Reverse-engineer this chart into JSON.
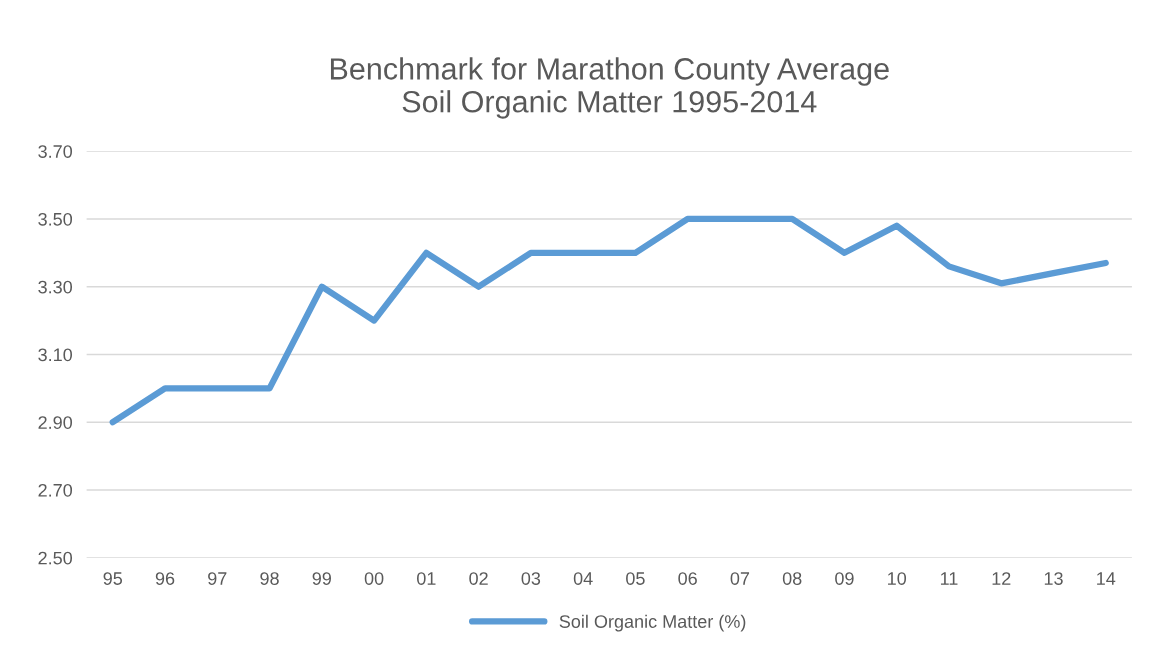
{
  "chart_data": {
    "type": "line",
    "title": "Benchmark for Marathon County Average\nSoil Organic Matter 1995-2014",
    "categories": [
      "95",
      "96",
      "97",
      "98",
      "99",
      "00",
      "01",
      "02",
      "03",
      "04",
      "05",
      "06",
      "07",
      "08",
      "09",
      "10",
      "11",
      "12",
      "13",
      "14"
    ],
    "series": [
      {
        "name": "Soil Organic Matter (%)",
        "color": "#5b9bd5",
        "values": [
          2.9,
          3.0,
          3.0,
          3.0,
          3.3,
          3.2,
          3.4,
          3.3,
          3.4,
          3.4,
          3.4,
          3.5,
          3.5,
          3.5,
          3.4,
          3.48,
          3.36,
          3.31,
          3.34,
          3.37
        ]
      }
    ],
    "ylim": [
      2.5,
      3.7
    ],
    "yticks": [
      {
        "value": 2.5,
        "label": "2.50"
      },
      {
        "value": 2.7,
        "label": "2.70"
      },
      {
        "value": 2.9,
        "label": "2.90"
      },
      {
        "value": 3.1,
        "label": "3.10"
      },
      {
        "value": 3.3,
        "label": "3.30"
      },
      {
        "value": 3.5,
        "label": "3.50"
      },
      {
        "value": 3.7,
        "label": "3.70"
      }
    ],
    "grid": "y",
    "legend": "bottom",
    "marker": "none",
    "line_style": "solid"
  }
}
